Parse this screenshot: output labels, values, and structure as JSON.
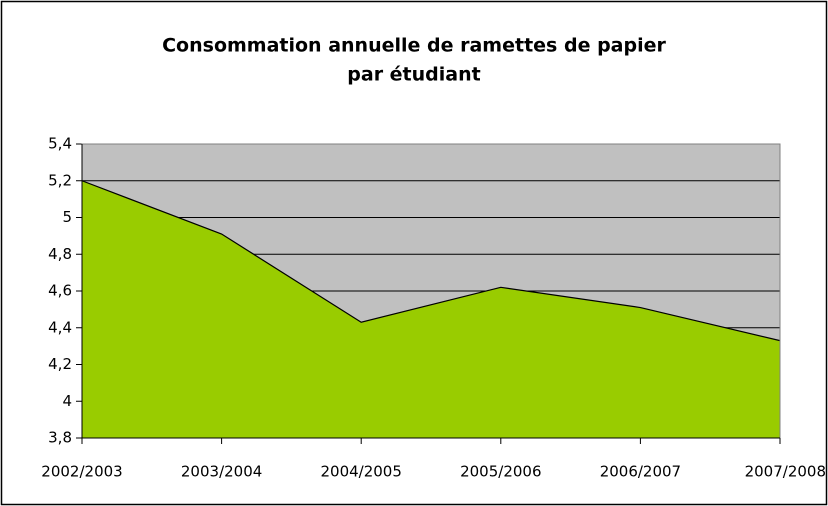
{
  "chart_data": {
    "type": "area",
    "title": [
      "Consommation annuelle de ramettes de papier",
      "par étudiant"
    ],
    "categories": [
      "2002/2003",
      "2003/2004",
      "2004/2005",
      "2005/2006",
      "2006/2007",
      "2007/2008"
    ],
    "values": [
      5.2,
      4.91,
      4.43,
      4.62,
      4.51,
      4.33
    ],
    "color": "#99cc00",
    "plot_background": "#c0c0c0",
    "ylim": [
      3.8,
      5.4
    ],
    "yticks": [
      {
        "value": 3.8,
        "label": "3,8"
      },
      4,
      {
        "value": 4.2,
        "label": "4,2"
      },
      {
        "value": 4.4,
        "label": "4,4"
      },
      {
        "value": 4.6,
        "label": "4,6"
      },
      {
        "value": 4.8,
        "label": "4,8"
      },
      5,
      {
        "value": 5.2,
        "label": "5,2"
      },
      {
        "value": 5.4,
        "label": "5,4"
      }
    ],
    "grid": true
  }
}
